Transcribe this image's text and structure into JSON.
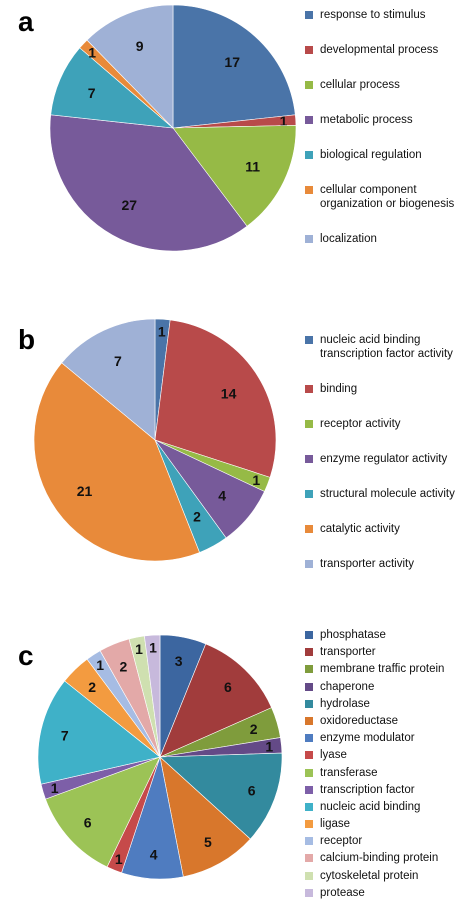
{
  "chart_data": [
    {
      "type": "pie",
      "panel_label": "a",
      "legend_position": "right",
      "slices": [
        {
          "label": "response to stimulus",
          "value": 17,
          "color": "#4a74a8"
        },
        {
          "label": "developmental process",
          "value": 1,
          "color": "#b84a4a"
        },
        {
          "label": "cellular process",
          "value": 11,
          "color": "#96ba46"
        },
        {
          "label": "metabolic process",
          "value": 27,
          "color": "#775a9a"
        },
        {
          "label": "biological regulation",
          "value": 7,
          "color": "#3ea2b9"
        },
        {
          "label": "cellular component organization or biogenesis",
          "value": 1,
          "color": "#e88a3a"
        },
        {
          "label": "localization",
          "value": 9,
          "color": "#9fb1d6"
        }
      ]
    },
    {
      "type": "pie",
      "panel_label": "b",
      "legend_position": "right",
      "slices": [
        {
          "label": "nucleic acid binding transcription factor activity",
          "value": 1,
          "color": "#4a74a8"
        },
        {
          "label": "binding",
          "value": 14,
          "color": "#b84a4a"
        },
        {
          "label": "receptor activity",
          "value": 1,
          "color": "#96ba46"
        },
        {
          "label": "enzyme regulator activity",
          "value": 4,
          "color": "#775a9a"
        },
        {
          "label": "structural molecule activity",
          "value": 2,
          "color": "#3ea2b9"
        },
        {
          "label": "catalytic activity",
          "value": 21,
          "color": "#e88a3a"
        },
        {
          "label": "transporter activity",
          "value": 7,
          "color": "#9fb1d6"
        }
      ]
    },
    {
      "type": "pie",
      "panel_label": "c",
      "legend_position": "right",
      "slices": [
        {
          "label": "phosphatase",
          "value": 3,
          "color": "#3c66a0"
        },
        {
          "label": "transporter",
          "value": 6,
          "color": "#a13c3c"
        },
        {
          "label": "membrane traffic protein",
          "value": 2,
          "color": "#7f9c3c"
        },
        {
          "label": "chaperone",
          "value": 1,
          "color": "#644a87"
        },
        {
          "label": "hydrolase",
          "value": 6,
          "color": "#338a9e"
        },
        {
          "label": "oxidoreductase",
          "value": 5,
          "color": "#d8772c"
        },
        {
          "label": "enzyme modulator",
          "value": 4,
          "color": "#4f7cc0"
        },
        {
          "label": "lyase",
          "value": 1,
          "color": "#c64a4a"
        },
        {
          "label": "transferase",
          "value": 6,
          "color": "#9cc356"
        },
        {
          "label": "transcription factor",
          "value": 1,
          "color": "#7d5fa8"
        },
        {
          "label": "nucleic acid binding",
          "value": 7,
          "color": "#3fb1c8"
        },
        {
          "label": "ligase",
          "value": 2,
          "color": "#f39b40"
        },
        {
          "label": "receptor",
          "value": 1,
          "color": "#a6bce3"
        },
        {
          "label": "calcium-binding protein",
          "value": 2,
          "color": "#e3a9a8"
        },
        {
          "label": "cytoskeletal protein",
          "value": 1,
          "color": "#cfe0b0"
        },
        {
          "label": "protease",
          "value": 1,
          "color": "#c7b9dc"
        }
      ]
    }
  ]
}
